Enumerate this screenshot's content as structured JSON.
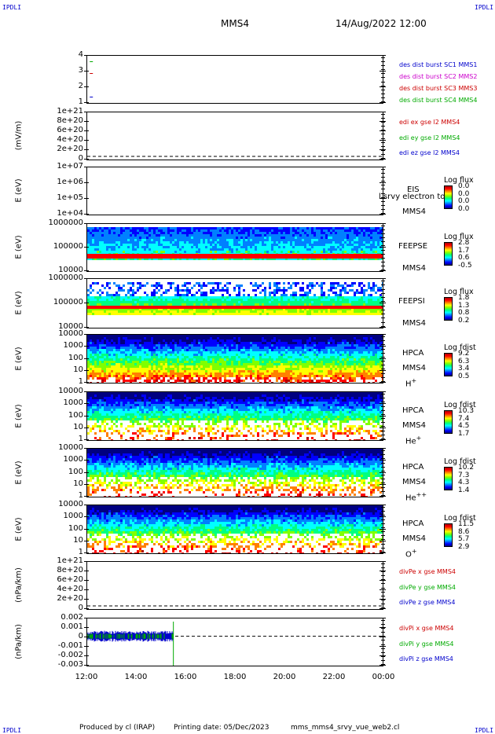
{
  "header": {
    "corner_tl": "IPDLI",
    "corner_tr": "IPDLI",
    "corner_bl": "IPDLI",
    "corner_br": "IPDLI",
    "spacecraft": "MMS4",
    "datetime": "14/Aug/2022 12:00"
  },
  "footer": {
    "produced": "Produced by cl (IRAP)",
    "printing": "Printing date: 05/Dec/2023",
    "file": "mms_mms4_srvy_vue_web2.cl"
  },
  "colors": {
    "spectrogram_scale": [
      "#000080",
      "#0000ff",
      "#0080ff",
      "#00ffff",
      "#00ff80",
      "#80ff00",
      "#ffff00",
      "#ff8000",
      "#ff0000",
      "#b00000"
    ]
  },
  "chart_data": [
    {
      "type": "scatter",
      "id": "burst",
      "ylabel": "",
      "yticks": [
        "4",
        "3",
        "2",
        "1"
      ],
      "ylim": [
        0.5,
        4.5
      ],
      "legend": [
        {
          "name": "des dist burst SC1 MMS1",
          "color": "#0000cc"
        },
        {
          "name": "des dist burst SC2 MMS2",
          "color": "#cc00cc"
        },
        {
          "name": "des dist burst SC3 MMS3",
          "color": "#cc0000"
        },
        {
          "name": "des dist burst SC4 MMS4",
          "color": "#00aa00"
        }
      ],
      "series": [
        {
          "name": "des dist burst SC4 MMS4",
          "x": [
            "12:10"
          ],
          "y": [
            4
          ]
        },
        {
          "name": "des dist burst SC3 MMS3",
          "x": [
            "12:10"
          ],
          "y": [
            3
          ]
        },
        {
          "name": "des dist burst SC1 MMS1",
          "x": [
            "12:10"
          ],
          "y": [
            1
          ]
        }
      ]
    },
    {
      "type": "line",
      "id": "edi",
      "ylabel": "(mV/m)",
      "yticks": [
        "1e+21",
        "8e+20",
        "6e+20",
        "4e+20",
        "2e+20",
        "0"
      ],
      "ylim": [
        0,
        1e+21
      ],
      "legend": [
        {
          "name": "edi ex gse l2 MMS4",
          "color": "#cc0000"
        },
        {
          "name": "edi ey gse l2 MMS4",
          "color": "#00aa00"
        },
        {
          "name": "edi ez gse l2 MMS4",
          "color": "#0000cc"
        }
      ],
      "zero_line": true
    },
    {
      "type": "heatmap",
      "id": "eis",
      "ylabel": "E (eV)",
      "yticks": [
        "1e+07",
        "1e+06",
        "1e+05",
        "1e+04"
      ],
      "ylim": [
        10000.0,
        10000000.0
      ],
      "side_labels": [
        "EIS",
        "MMS4"
      ],
      "overlay_text": "l srvy electron to",
      "colorbar": {
        "title": "Log flux",
        "values": [
          "0.0",
          "0.0",
          "0.0",
          "0.0"
        ]
      },
      "empty": true
    },
    {
      "type": "heatmap",
      "id": "feepse",
      "ylabel": "E (eV)",
      "yticks": [
        "1000000",
        "100000",
        "10000"
      ],
      "ylim": [
        10000,
        1000000
      ],
      "side_labels": [
        "FEEPSE",
        "MMS4"
      ],
      "colorbar": {
        "title": "Log flux",
        "values": [
          "2.8",
          "1.7",
          "0.6",
          "-0.5"
        ]
      }
    },
    {
      "type": "heatmap",
      "id": "feepsi",
      "ylabel": "E (eV)",
      "yticks": [
        "1000000",
        "100000",
        "10000"
      ],
      "ylim": [
        10000,
        1000000
      ],
      "side_labels": [
        "FEEPSI",
        "MMS4"
      ],
      "colorbar": {
        "title": "Log flux",
        "values": [
          "1.8",
          "1.3",
          "0.8",
          "0.2"
        ]
      }
    },
    {
      "type": "heatmap",
      "id": "hpca_h",
      "ylabel": "E (eV)",
      "yticks": [
        "10000",
        "1000",
        "100",
        "10",
        "1"
      ],
      "ylim": [
        1,
        40000
      ],
      "side_labels": [
        "HPCA",
        "MMS4"
      ],
      "species": "H",
      "species_sup": "+",
      "colorbar": {
        "title": "Log fdist",
        "values": [
          "9.2",
          "6.3",
          "3.4",
          "0.5"
        ]
      }
    },
    {
      "type": "heatmap",
      "id": "hpca_he",
      "ylabel": "E (eV)",
      "yticks": [
        "10000",
        "1000",
        "100",
        "10",
        "1"
      ],
      "ylim": [
        1,
        40000
      ],
      "side_labels": [
        "HPCA",
        "MMS4"
      ],
      "species": "He",
      "species_sup": "+",
      "colorbar": {
        "title": "Log fdist",
        "values": [
          "10.3",
          "7.4",
          "4.5",
          "1.7"
        ]
      }
    },
    {
      "type": "heatmap",
      "id": "hpca_hepp",
      "ylabel": "E (eV)",
      "yticks": [
        "10000",
        "1000",
        "100",
        "10",
        "1"
      ],
      "ylim": [
        1,
        40000
      ],
      "side_labels": [
        "HPCA",
        "MMS4"
      ],
      "species": "He",
      "species_sup": "++",
      "colorbar": {
        "title": "Log fdist",
        "values": [
          "10.2",
          "7.3",
          "4.3",
          "1.4"
        ]
      }
    },
    {
      "type": "heatmap",
      "id": "hpca_o",
      "ylabel": "E (eV)",
      "yticks": [
        "10000",
        "1000",
        "100",
        "10",
        "1"
      ],
      "ylim": [
        1,
        40000
      ],
      "side_labels": [
        "HPCA",
        "MMS4"
      ],
      "species": "O",
      "species_sup": "+",
      "colorbar": {
        "title": "Log fdist",
        "values": [
          "11.5",
          "8.6",
          "5.7",
          "2.9"
        ]
      }
    },
    {
      "type": "line",
      "id": "divpe",
      "ylabel": "(nPa/km)",
      "yticks": [
        "1e+21",
        "8e+20",
        "6e+20",
        "4e+20",
        "2e+20",
        "0"
      ],
      "ylim": [
        0,
        1e+21
      ],
      "legend": [
        {
          "name": "divPe x gse MMS4",
          "color": "#cc0000"
        },
        {
          "name": "divPe y gse MMS4",
          "color": "#00aa00"
        },
        {
          "name": "divPe z gse MMS4",
          "color": "#0000cc"
        }
      ],
      "zero_line": true
    },
    {
      "type": "line",
      "id": "divpi",
      "ylabel": "(nPa/km)",
      "yticks": [
        "0.002",
        "0.001",
        "0",
        "-0.001",
        "-0.002",
        "-0.003"
      ],
      "ylim": [
        -0.0033,
        0.002
      ],
      "legend": [
        {
          "name": "divPi x gse MMS4",
          "color": "#cc0000"
        },
        {
          "name": "divPi y gse MMS4",
          "color": "#00aa00"
        },
        {
          "name": "divPi z gse MMS4",
          "color": "#0000cc"
        }
      ],
      "zero_line": true,
      "series": [
        {
          "name": "divPi x gse MMS4",
          "x_range": [
            "12:00",
            "15:30"
          ],
          "level": 0.0
        },
        {
          "name": "divPi y gse MMS4",
          "x_range": [
            "12:00",
            "15:30"
          ],
          "level": -0.0001
        },
        {
          "name": "divPi z gse MMS4",
          "x_range": [
            "12:00",
            "15:30"
          ],
          "level": 0.0
        }
      ]
    }
  ],
  "xaxis": {
    "ticks": [
      "12:00",
      "14:00",
      "16:00",
      "18:00",
      "20:00",
      "22:00",
      "00:00"
    ],
    "xlim": [
      "12:00",
      "00:00"
    ]
  }
}
